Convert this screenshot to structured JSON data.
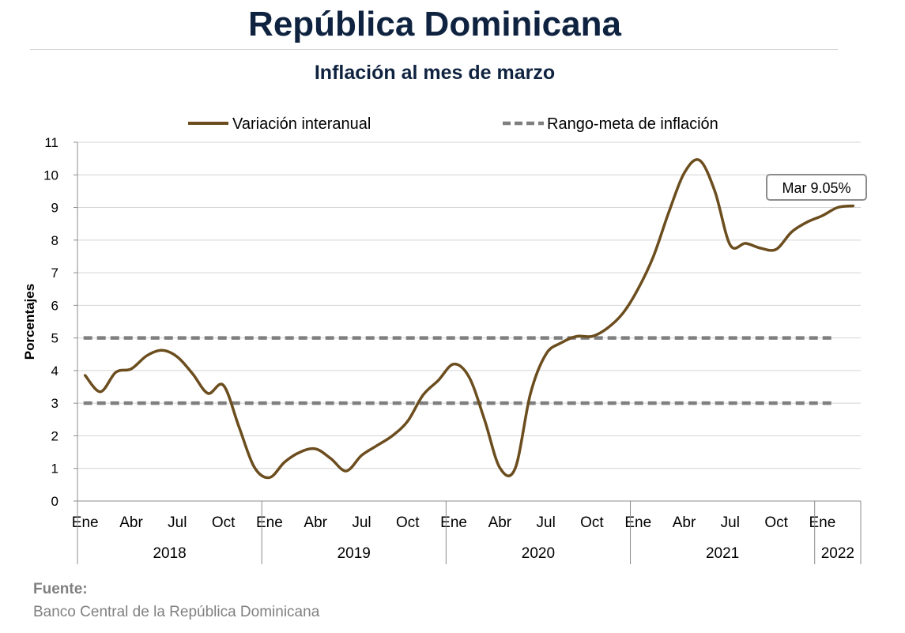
{
  "header": {
    "title": "República Dominicana",
    "subtitle": "Inflación al mes de marzo"
  },
  "source": {
    "label": "Fuente:",
    "text": "Banco Central de la República Dominicana"
  },
  "chart_data": {
    "type": "line",
    "title": "Inflación al mes de marzo",
    "ylabel": "Porcentajes",
    "xlabel": "",
    "ylim": [
      0,
      11
    ],
    "yticks": [
      "0",
      "1",
      "2",
      "3",
      "4",
      "5",
      "6",
      "7",
      "8",
      "9",
      "10",
      "11"
    ],
    "grid": true,
    "legend_position": "top",
    "month_ticks": [
      {
        "label": "Ene",
        "index": 0
      },
      {
        "label": "Abr",
        "index": 3
      },
      {
        "label": "Jul",
        "index": 6
      },
      {
        "label": "Oct",
        "index": 9
      },
      {
        "label": "Ene",
        "index": 12
      },
      {
        "label": "Abr",
        "index": 15
      },
      {
        "label": "Jul",
        "index": 18
      },
      {
        "label": "Oct",
        "index": 21
      },
      {
        "label": "Ene",
        "index": 24
      },
      {
        "label": "Abr",
        "index": 27
      },
      {
        "label": "Jul",
        "index": 30
      },
      {
        "label": "Oct",
        "index": 33
      },
      {
        "label": "Ene",
        "index": 36
      },
      {
        "label": "Abr",
        "index": 39
      },
      {
        "label": "Jul",
        "index": 42
      },
      {
        "label": "Oct",
        "index": 45
      },
      {
        "label": "Ene",
        "index": 48
      }
    ],
    "years": [
      {
        "label": "2018",
        "start": 0,
        "end": 12
      },
      {
        "label": "2019",
        "start": 12,
        "end": 24
      },
      {
        "label": "2020",
        "start": 24,
        "end": 36
      },
      {
        "label": "2021",
        "start": 36,
        "end": 48
      },
      {
        "label": "2022",
        "start": 48,
        "end": 51
      }
    ],
    "series": [
      {
        "name": "Variación interanual",
        "color": "#6b4d1e",
        "style": "solid",
        "values": [
          3.85,
          3.35,
          3.95,
          4.05,
          4.45,
          4.62,
          4.42,
          3.9,
          3.3,
          3.55,
          2.3,
          1.05,
          0.72,
          1.2,
          1.5,
          1.6,
          1.3,
          0.92,
          1.4,
          1.7,
          2.0,
          2.45,
          3.25,
          3.7,
          4.2,
          3.8,
          2.5,
          1.02,
          1.0,
          3.3,
          4.5,
          4.85,
          5.05,
          5.05,
          5.3,
          5.75,
          6.5,
          7.5,
          8.85,
          10.05,
          10.45,
          9.5,
          7.85,
          7.9,
          7.75,
          7.72,
          8.25,
          8.55,
          8.75,
          9.0,
          9.05
        ]
      },
      {
        "name": "Rango-meta de inflación",
        "color": "#7f7f7f",
        "style": "dashed",
        "values_upper": 5,
        "values_lower": 3
      }
    ],
    "annotation": {
      "text": "Mar 9.05%",
      "index": 50,
      "value": 9.05
    }
  }
}
